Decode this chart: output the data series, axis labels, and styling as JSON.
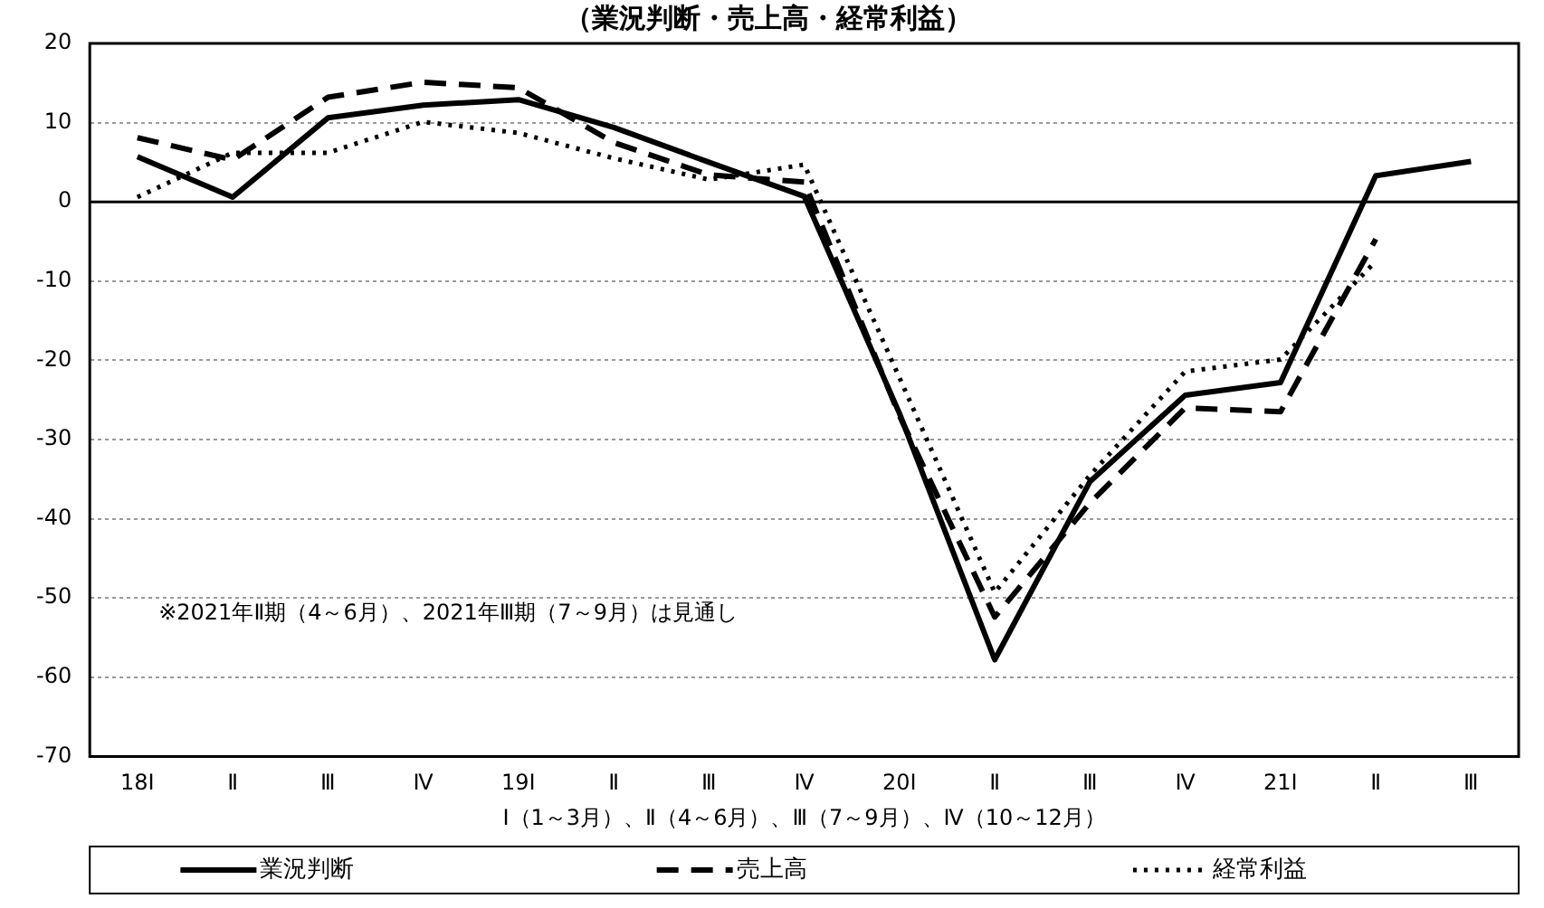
{
  "chart_data": {
    "type": "line",
    "title": "（業況判断・売上高・経常利益）",
    "xlabel": "Ⅰ（1～3月）、Ⅱ（4～6月）、Ⅲ（7～9月）、Ⅳ（10～12月）",
    "categories": [
      "18Ⅰ",
      "Ⅱ",
      "Ⅲ",
      "Ⅳ",
      "19Ⅰ",
      "Ⅱ",
      "Ⅲ",
      "Ⅳ",
      "20Ⅰ",
      "Ⅱ",
      "Ⅲ",
      "Ⅳ",
      "21Ⅰ",
      "Ⅱ",
      "Ⅲ"
    ],
    "series": [
      {
        "name": "業況判断",
        "color": "#000000",
        "line_style": "solid",
        "values": [
          5.7,
          0.6,
          10.6,
          12.2,
          12.9,
          9.4,
          5,
          0.7,
          -26.7,
          -57.8,
          -35.3,
          -24.4,
          -22.8,
          3.3,
          5.1
        ]
      },
      {
        "name": "売上高",
        "color": "#000000",
        "line_style": "dashed",
        "values": [
          8.1,
          5.3,
          13.2,
          15.1,
          14.4,
          7.5,
          3.4,
          2.5,
          -27,
          -52.4,
          -38,
          -26,
          -26.5,
          -4.7,
          null
        ]
      },
      {
        "name": "経常利益",
        "color": "#000000",
        "line_style": "dotted",
        "values": [
          0.6,
          6.2,
          6.2,
          10.1,
          8.7,
          5.5,
          2.8,
          4.7,
          -22.2,
          -49.3,
          -34.5,
          -21.4,
          -19.9,
          -7.5,
          null
        ]
      }
    ],
    "ylim": [
      -70,
      20
    ],
    "yticks": [
      -70,
      -60,
      -50,
      -40,
      -30,
      -20,
      -10,
      0,
      10,
      20
    ],
    "grid": "y",
    "ref_lines": [
      {
        "axis": "y",
        "value": 0,
        "color": "#000000"
      }
    ],
    "legend": "bottom",
    "marker": "none",
    "annotations": [
      "※2021年Ⅱ期（4～6月）、2021年Ⅲ期（7～9月）は見通し"
    ]
  }
}
